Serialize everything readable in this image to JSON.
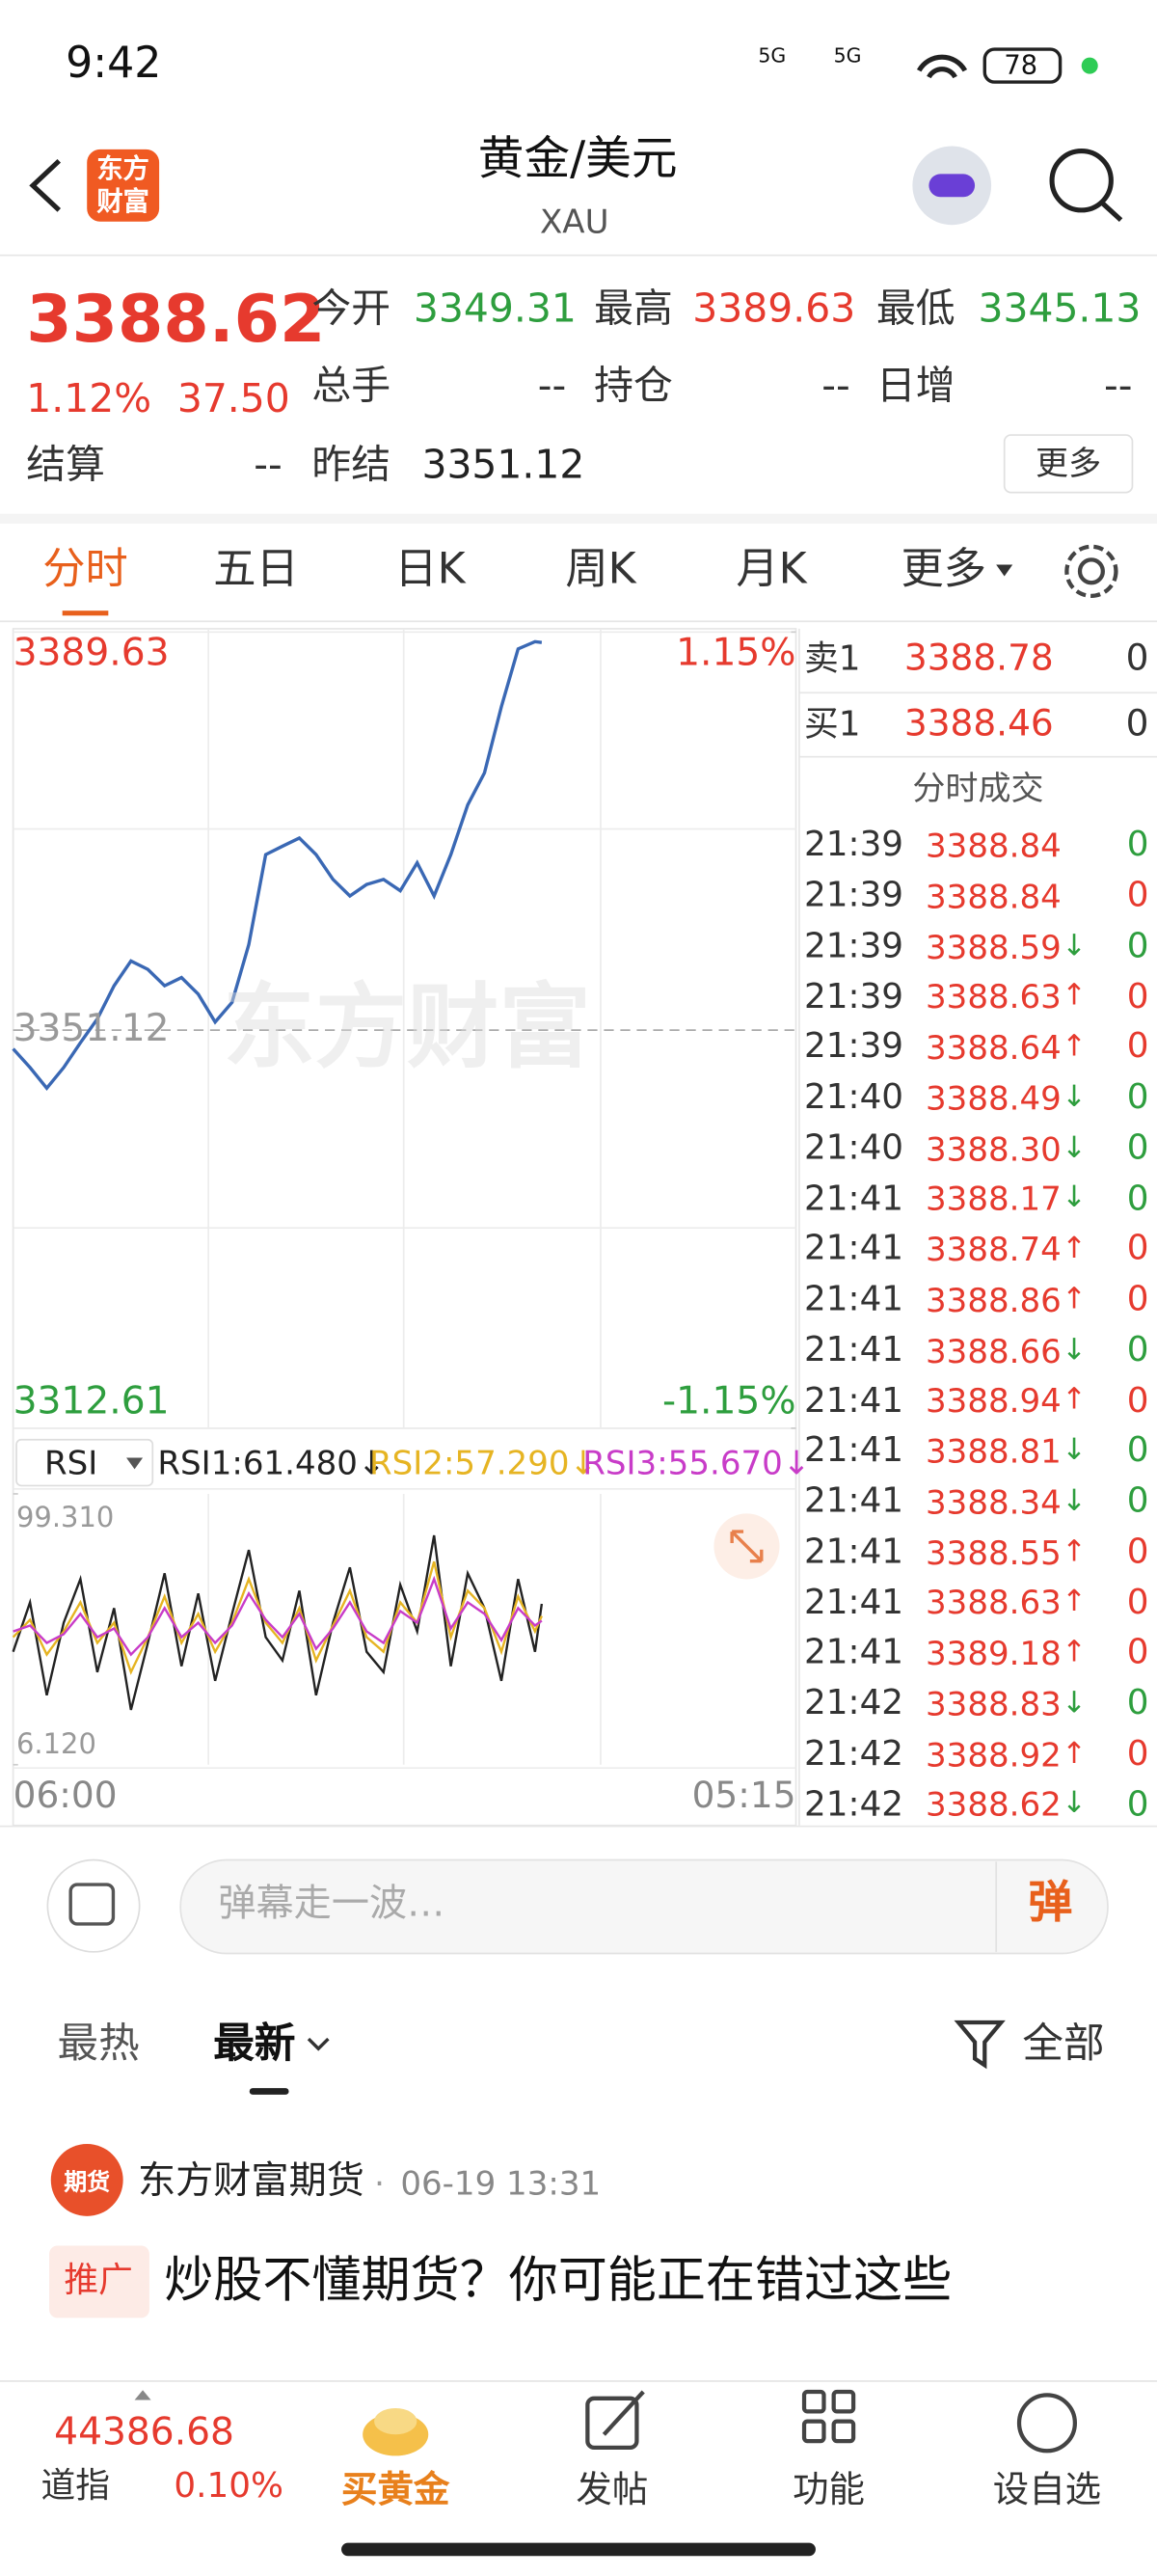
{
  "status_bar": {
    "time": "9:42",
    "network": "5G",
    "battery": "78"
  },
  "header": {
    "brand": [
      "东方",
      "财富"
    ],
    "title": "黄金/美元",
    "subtitle": "XAU"
  },
  "quote": {
    "price": "3388.62",
    "change_pct": "1.12%",
    "change": "37.50",
    "color": "#e63a2e",
    "fields": [
      {
        "label": "今开",
        "value": "3349.31",
        "color": "#2e9e3e"
      },
      {
        "label": "最高",
        "value": "3389.63",
        "color": "#e63a2e"
      },
      {
        "label": "最低",
        "value": "3345.13",
        "color": "#2e9e3e"
      },
      {
        "label": "总手",
        "value": "--",
        "color": "#333333"
      },
      {
        "label": "持仓",
        "value": "--",
        "color": "#333333"
      },
      {
        "label": "日增",
        "value": "--",
        "color": "#333333"
      },
      {
        "label": "结算",
        "value": "--",
        "color": "#333333"
      },
      {
        "label": "昨结",
        "value": "3351.12",
        "color": "#222222"
      }
    ],
    "more": "更多"
  },
  "tabs": {
    "items": [
      "分时",
      "五日",
      "日K",
      "周K",
      "月K",
      "更多"
    ],
    "active": 0
  },
  "price_chart": {
    "type": "line",
    "color": "#3a68b4",
    "watermark": "东方财富",
    "grid": true,
    "xlim": [
      "06:00",
      "05:15"
    ],
    "x": [
      "06:00",
      "06:30",
      "07:00",
      "07:30",
      "08:00",
      "08:30",
      "09:00",
      "09:30",
      "10:00",
      "10:30",
      "11:00",
      "11:30",
      "12:00",
      "12:30",
      "13:00",
      "13:30",
      "14:00",
      "14:30",
      "15:00",
      "15:30",
      "16:00",
      "16:30",
      "17:00",
      "17:30",
      "18:00",
      "18:30",
      "19:00",
      "19:30",
      "20:00",
      "20:30",
      "21:00",
      "21:30",
      "21:42"
    ],
    "values": [
      3349.31,
      3347.5,
      3345.5,
      3347.5,
      3349.9,
      3352.2,
      3355.4,
      3357.8,
      3357.0,
      3355.4,
      3356.2,
      3354.6,
      3351.9,
      3353.8,
      3359.4,
      3368.1,
      3368.9,
      3369.7,
      3368.1,
      3365.7,
      3364.1,
      3365.2,
      3365.7,
      3364.6,
      3367.3,
      3364.1,
      3368.1,
      3372.9,
      3376.0,
      3382.4,
      3388.0,
      3388.7,
      3388.62
    ],
    "ylim": [
      3312.61,
      3389.63
    ],
    "yticks": [
      3312.61,
      3351.12,
      3389.63
    ],
    "y2lim": [
      -1.15,
      1.15
    ],
    "y2ticks": [
      {
        "value": -1.15,
        "label": "-1.15%"
      },
      {
        "value": 1.15,
        "label": "1.15%"
      }
    ]
  },
  "rsi_chart": {
    "type": "line",
    "indicator": "RSI",
    "ylim": [
      6.12,
      99.31
    ],
    "yticks": [
      {
        "value": 6.12,
        "label": "6.120"
      },
      {
        "value": 99.31,
        "label": "99.310"
      }
    ],
    "series": [
      {
        "name": "RSI1:61.480↓",
        "color": "#222222",
        "values": [
          45,
          62,
          30,
          55,
          70,
          38,
          60,
          25,
          48,
          72,
          40,
          65,
          35,
          58,
          80,
          50,
          42,
          66,
          30,
          55,
          74,
          45,
          38,
          68,
          52,
          85,
          40,
          72,
          60,
          35,
          70,
          45,
          61.48
        ]
      },
      {
        "name": "RSI2:57.290↓",
        "color": "#e6b422",
        "values": [
          50,
          56,
          44,
          52,
          62,
          48,
          55,
          38,
          50,
          64,
          48,
          58,
          45,
          55,
          70,
          55,
          48,
          60,
          42,
          54,
          66,
          50,
          45,
          62,
          55,
          76,
          50,
          66,
          60,
          45,
          64,
          52,
          57.29
        ]
      },
      {
        "name": "RSI3:55.670↓",
        "color": "#c83cc8",
        "values": [
          52,
          54,
          48,
          51,
          58,
          50,
          53,
          44,
          50,
          60,
          50,
          55,
          48,
          54,
          65,
          56,
          50,
          58,
          46,
          53,
          62,
          52,
          48,
          59,
          55,
          70,
          53,
          62,
          58,
          49,
          60,
          54,
          55.67
        ]
      }
    ]
  },
  "order_book": {
    "asks": [
      {
        "label": "卖1",
        "price": "3388.78",
        "volume": "0"
      }
    ],
    "bids": [
      {
        "label": "买1",
        "price": "3388.46",
        "volume": "0"
      }
    ],
    "trades_title": "分时成交",
    "trades": [
      {
        "time": "21:39",
        "price": "3388.84",
        "volume": "0",
        "color": "#2e9e3e"
      },
      {
        "time": "21:39",
        "price": "3388.84",
        "volume": "0",
        "color": "#e63a2e"
      },
      {
        "time": "21:39",
        "price": "3388.59",
        "dir": "↓",
        "volume": "0",
        "color": "#2e9e3e"
      },
      {
        "time": "21:39",
        "price": "3388.63",
        "dir": "↑",
        "volume": "0",
        "color": "#e63a2e"
      },
      {
        "time": "21:39",
        "price": "3388.64",
        "dir": "↑",
        "volume": "0",
        "color": "#e63a2e"
      },
      {
        "time": "21:40",
        "price": "3388.49",
        "dir": "↓",
        "volume": "0",
        "color": "#2e9e3e"
      },
      {
        "time": "21:40",
        "price": "3388.30",
        "dir": "↓",
        "volume": "0",
        "color": "#2e9e3e"
      },
      {
        "time": "21:41",
        "price": "3388.17",
        "dir": "↓",
        "volume": "0",
        "color": "#2e9e3e"
      },
      {
        "time": "21:41",
        "price": "3388.74",
        "dir": "↑",
        "volume": "0",
        "color": "#e63a2e"
      },
      {
        "time": "21:41",
        "price": "3388.86",
        "dir": "↑",
        "volume": "0",
        "color": "#e63a2e"
      },
      {
        "time": "21:41",
        "price": "3388.66",
        "dir": "↓",
        "volume": "0",
        "color": "#2e9e3e"
      },
      {
        "time": "21:41",
        "price": "3388.94",
        "dir": "↑",
        "volume": "0",
        "color": "#e63a2e"
      },
      {
        "time": "21:41",
        "price": "3388.81",
        "dir": "↓",
        "volume": "0",
        "color": "#2e9e3e"
      },
      {
        "time": "21:41",
        "price": "3388.34",
        "dir": "↓",
        "volume": "0",
        "color": "#2e9e3e"
      },
      {
        "time": "21:41",
        "price": "3388.55",
        "dir": "↑",
        "volume": "0",
        "color": "#e63a2e"
      },
      {
        "time": "21:41",
        "price": "3388.63",
        "dir": "↑",
        "volume": "0",
        "color": "#e63a2e"
      },
      {
        "time": "21:41",
        "price": "3389.18",
        "dir": "↑",
        "volume": "0",
        "color": "#e63a2e"
      },
      {
        "time": "21:42",
        "price": "3388.83",
        "dir": "↓",
        "volume": "0",
        "color": "#2e9e3e"
      },
      {
        "time": "21:42",
        "price": "3388.92",
        "dir": "↑",
        "volume": "0",
        "color": "#e63a2e"
      },
      {
        "time": "21:42",
        "price": "3388.62",
        "dir": "↓",
        "volume": "0",
        "color": "#2e9e3e"
      }
    ]
  },
  "danmaku": {
    "placeholder": "弹幕走一波…",
    "button": "弹"
  },
  "comments": {
    "tabs": [
      "最热",
      "最新"
    ],
    "active": 1,
    "filter": "全部",
    "posts": [
      {
        "avatar": "期货",
        "author": "东方财富期货",
        "separator": "·",
        "time": "06-19 13:31",
        "tag": "推广",
        "text": "炒股不懂期货？你可能正在错过这些"
      }
    ]
  },
  "bottom_bar": {
    "index_value": "44386.68",
    "index_name": "道指",
    "index_change": "0.10%",
    "items": [
      "买黄金",
      "发帖",
      "功能",
      "设自选"
    ]
  }
}
